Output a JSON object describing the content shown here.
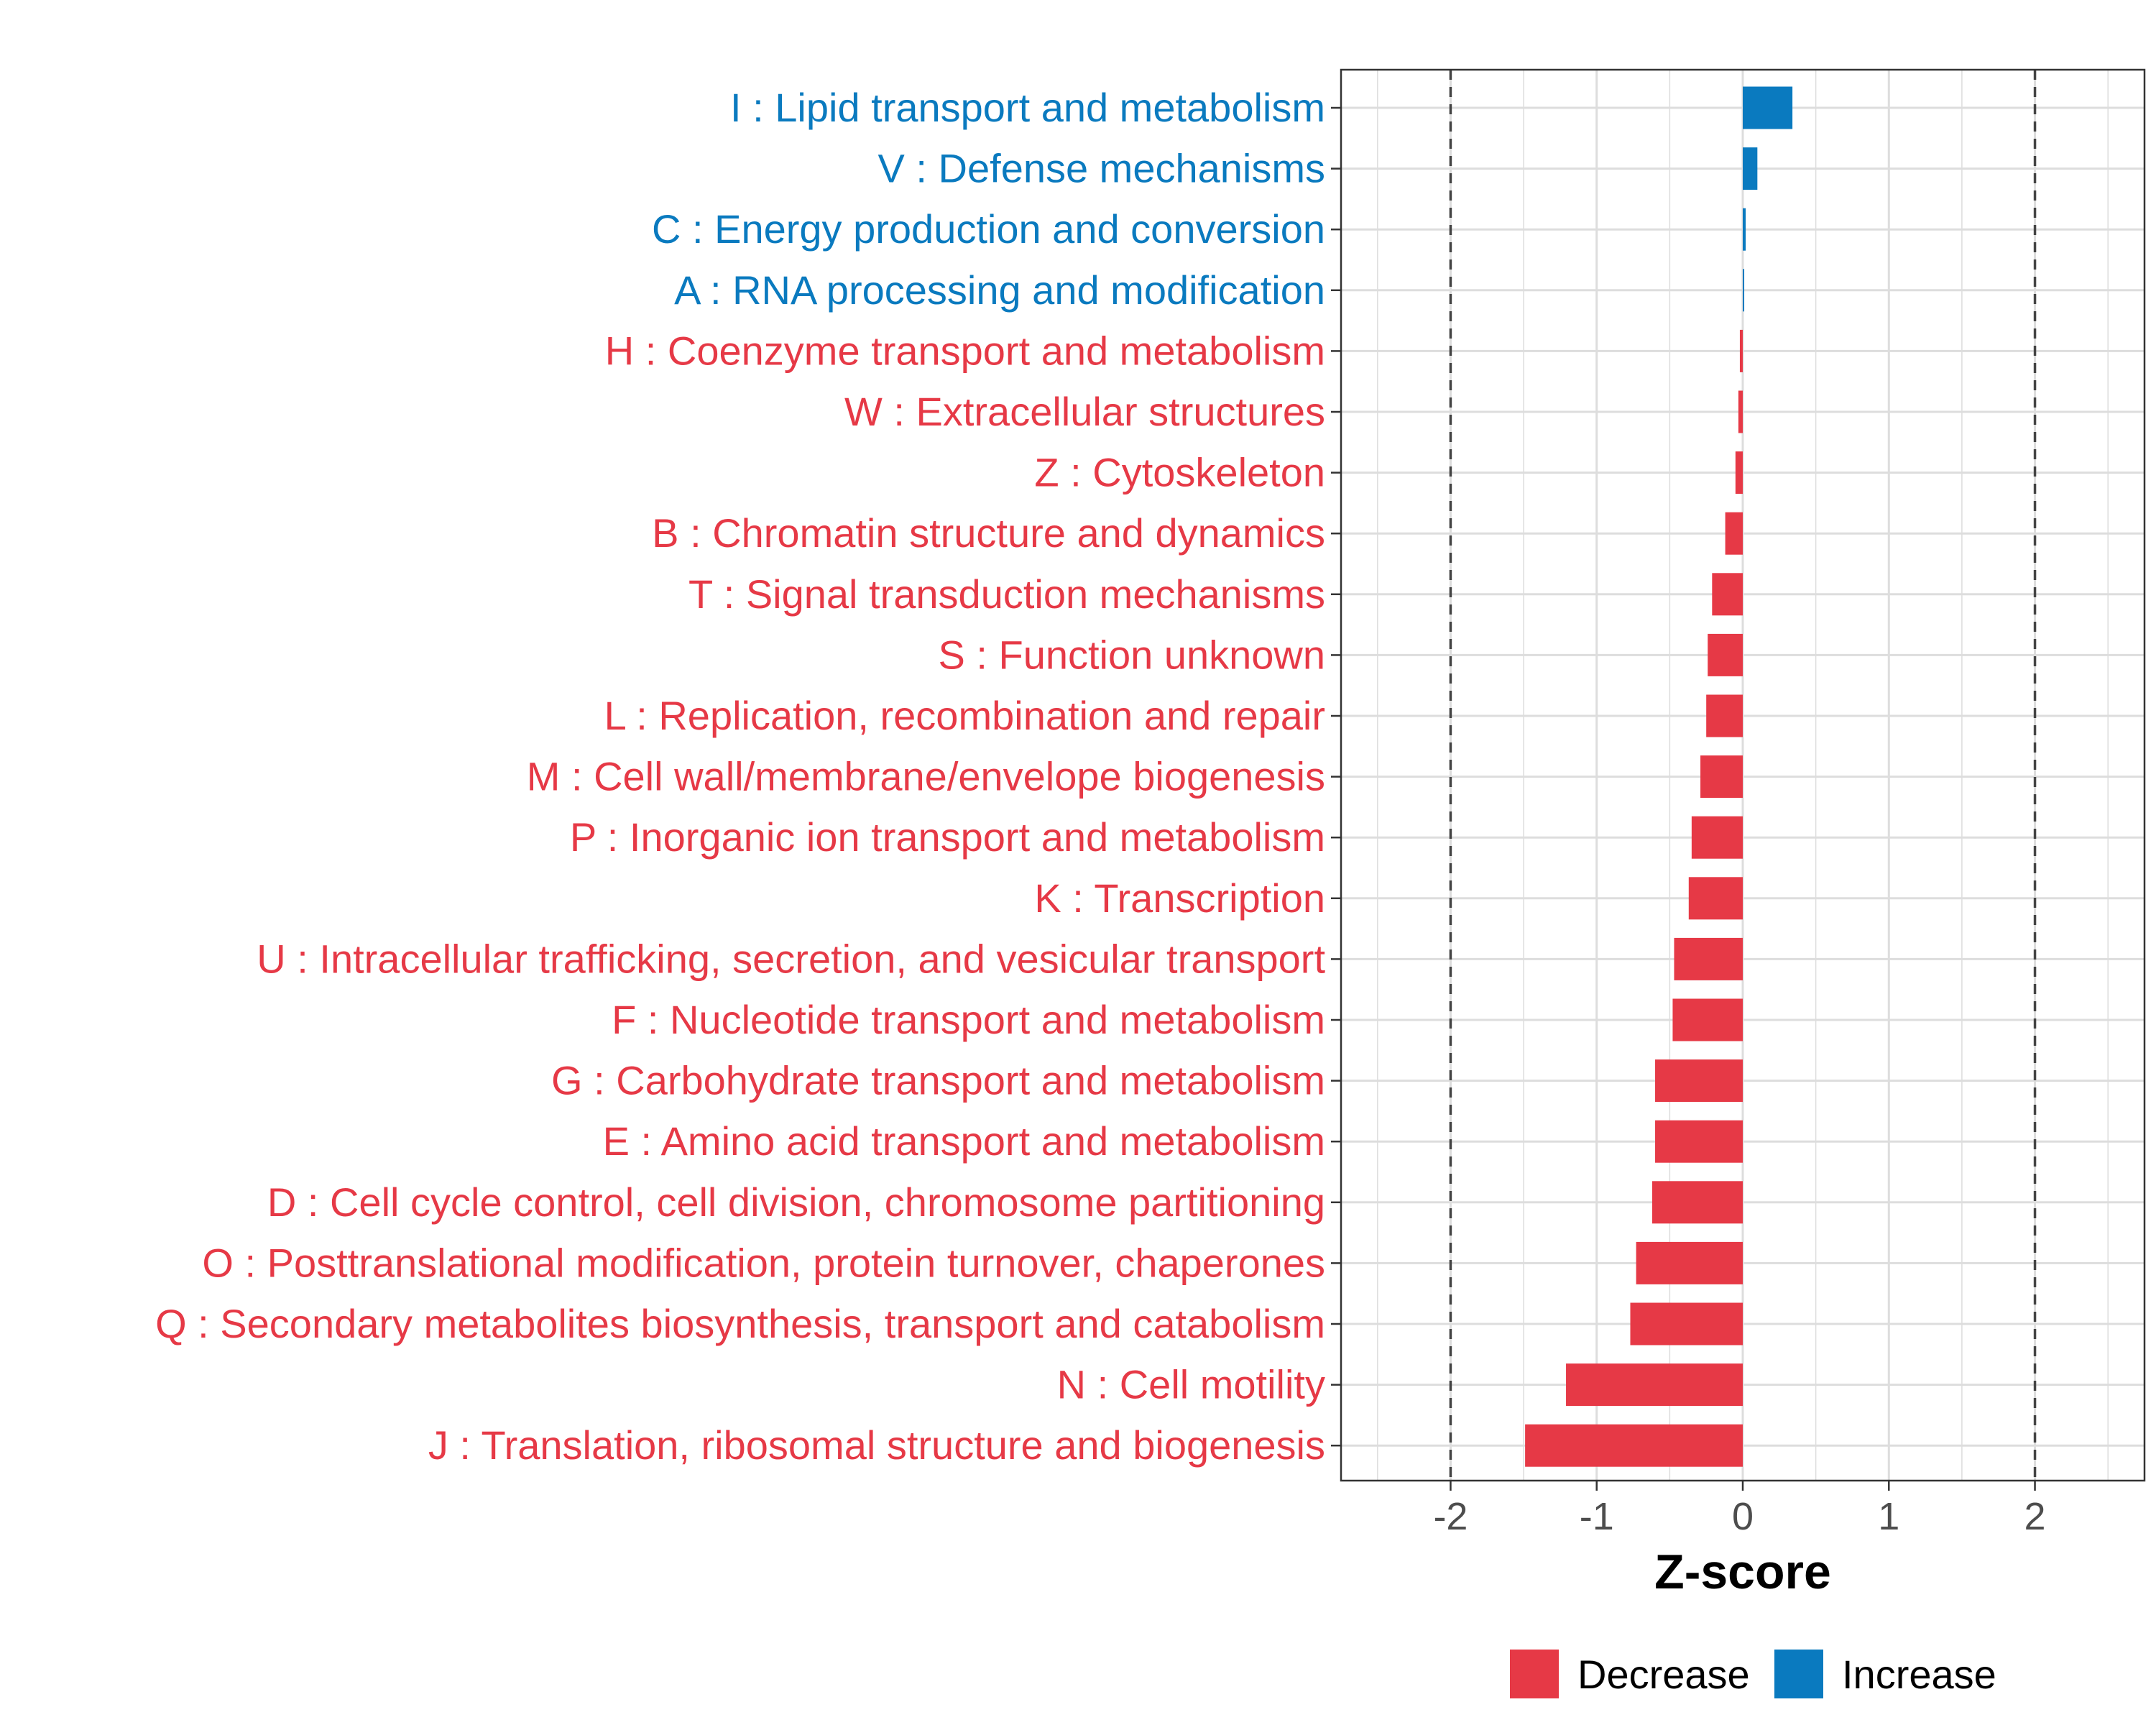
{
  "chart_data": {
    "type": "bar",
    "orientation": "horizontal",
    "xlabel": "Z-score",
    "xlim": [
      -2.75,
      2.75
    ],
    "xticks": [
      -2,
      -1,
      0,
      1,
      2
    ],
    "xtick_labels": [
      "-2",
      "-1",
      "0",
      "1",
      "2"
    ],
    "reference_lines": [
      -2,
      2
    ],
    "grid": true,
    "categories": [
      "I : Lipid transport and metabolism",
      "V : Defense mechanisms",
      "C : Energy production and conversion",
      "A : RNA processing and modification",
      "H : Coenzyme transport and metabolism",
      "W : Extracellular structures",
      "Z : Cytoskeleton",
      "B : Chromatin structure and dynamics",
      "T : Signal transduction mechanisms",
      "S : Function unknown",
      "L : Replication, recombination and repair",
      "M : Cell wall/membrane/envelope biogenesis",
      "P : Inorganic ion transport and metabolism",
      "K : Transcription",
      "U : Intracellular trafficking, secretion, and vesicular transport",
      "F : Nucleotide transport and metabolism",
      "G : Carbohydrate transport and metabolism",
      "E : Amino acid transport and metabolism",
      "D : Cell cycle control, cell division, chromosome partitioning",
      "O : Posttranslational modification, protein turnover, chaperones",
      "Q : Secondary metabolites biosynthesis, transport and catabolism",
      "N : Cell motility",
      "J : Translation, ribosomal structure and biogenesis"
    ],
    "values": [
      0.34,
      0.1,
      0.02,
      0.01,
      -0.02,
      -0.03,
      -0.05,
      -0.12,
      -0.21,
      -0.24,
      -0.25,
      -0.29,
      -0.35,
      -0.37,
      -0.47,
      -0.48,
      -0.6,
      -0.6,
      -0.62,
      -0.73,
      -0.77,
      -1.21,
      -1.49
    ],
    "groups": [
      "Increase",
      "Increase",
      "Increase",
      "Increase",
      "Decrease",
      "Decrease",
      "Decrease",
      "Decrease",
      "Decrease",
      "Decrease",
      "Decrease",
      "Decrease",
      "Decrease",
      "Decrease",
      "Decrease",
      "Decrease",
      "Decrease",
      "Decrease",
      "Decrease",
      "Decrease",
      "Decrease",
      "Decrease",
      "Decrease"
    ],
    "legend": [
      {
        "name": "Decrease",
        "color": "#e63946"
      },
      {
        "name": "Increase",
        "color": "#0a7abf"
      }
    ],
    "legend_position": "bottom"
  }
}
